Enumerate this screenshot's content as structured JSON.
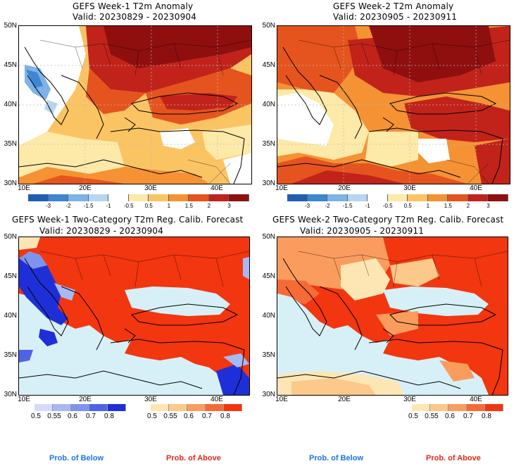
{
  "panels": [
    {
      "title": "GEFS Week-1 T2m Anomaly",
      "valid": "Valid: 20230829 - 20230904"
    },
    {
      "title": "GEFS Week-2 T2m Anomaly",
      "valid": "Valid: 20230905 - 20230911"
    },
    {
      "title": "GEFS Week-1 Two-Category T2m Reg. Calib. Forecast",
      "valid": "Valid: 20230829 - 20230904"
    },
    {
      "title": "GEFS Week-2 Two-Category T2m Reg. Calib. Forecast",
      "valid": "Valid: 20230905 - 20230911"
    }
  ],
  "axes": {
    "lat_labels": [
      "50N",
      "45N",
      "40N",
      "35N",
      "30N"
    ],
    "lon_labels": [
      "10E",
      "20E",
      "30E",
      "40E"
    ]
  },
  "anomaly_colorbar": {
    "labels": [
      "-3",
      "-2",
      "-1.5",
      "-1",
      "-0.5",
      "0.5",
      "1",
      "1.5",
      "2",
      "3"
    ],
    "colors": [
      "#1e5fb0",
      "#3d86d2",
      "#7db3e6",
      "#b6d6f2",
      "#ffffff",
      "#fde9a8",
      "#fbc463",
      "#f59234",
      "#e5541e",
      "#c1231b",
      "#8f0f0f"
    ]
  },
  "prob_colorbar": {
    "labels": [
      "0.5",
      "0.55",
      "0.6",
      "0.7",
      "0.8"
    ],
    "below_colors": [
      "#d4dcfa",
      "#a8b8f2",
      "#7f93ec",
      "#4f63e6",
      "#1f2fd8"
    ],
    "above_colors": [
      "#fde6b4",
      "#fcc98a",
      "#fa9c5e",
      "#f66a36",
      "#f23610"
    ]
  },
  "footer": {
    "below": "Prob. of Below",
    "above": "Prob. of Above",
    "below_color": "#1a74e8",
    "above_color": "#e42816"
  },
  "colors": {
    "sea_prob": "#d7f0f7",
    "grid_line": "#cfcfcf"
  }
}
